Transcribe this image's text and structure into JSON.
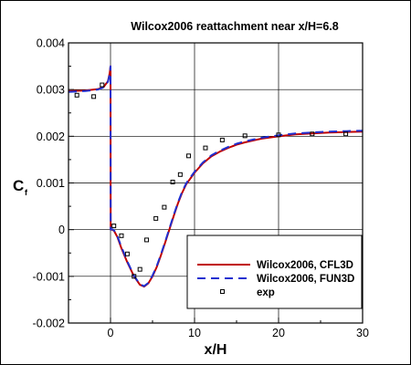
{
  "chart_data": {
    "type": "line",
    "title": "Wilcox2006 reattachment near x/H=6.8",
    "xlabel": "x/H",
    "ylabel_main": "C",
    "ylabel_sub": "f",
    "xlim": [
      -5,
      30
    ],
    "ylim": [
      -0.002,
      0.004
    ],
    "x_ticks": [
      0,
      10,
      20,
      30
    ],
    "x_tick_labels": [
      "0",
      "10",
      "20",
      "30"
    ],
    "y_ticks": [
      -0.002,
      -0.001,
      0,
      0.001,
      0.002,
      0.003,
      0.004
    ],
    "y_tick_labels": [
      "-0.002",
      "-0.001",
      "0",
      "0.001",
      "0.002",
      "0.003",
      "0.004"
    ],
    "grid": true,
    "legend_position": "bottom-right",
    "series": [
      {
        "name": "Wilcox2006, CFL3D",
        "color": "#c00000",
        "style": "solid",
        "x": [
          -5,
          -3,
          -1.5,
          -0.8,
          -0.3,
          -0.1,
          0,
          0.02,
          0.15,
          0.4,
          0.8,
          1.3,
          2,
          2.8,
          3.5,
          4,
          4.5,
          5,
          5.5,
          6,
          6.5,
          7,
          7.5,
          8,
          8.5,
          9,
          10,
          11,
          12,
          13,
          14,
          15,
          16,
          17,
          18,
          20,
          22,
          24,
          26,
          28,
          30
        ],
        "y": [
          0.00297,
          0.00298,
          0.00301,
          0.00306,
          0.00318,
          0.00335,
          0.0035,
          0.0,
          0.0,
          -2e-05,
          -0.00015,
          -0.0004,
          -0.0007,
          -0.001,
          -0.00118,
          -0.00122,
          -0.00115,
          -0.001,
          -0.0008,
          -0.00055,
          -0.00028,
          0.0,
          0.00028,
          0.00055,
          0.00078,
          0.00097,
          0.00122,
          0.00142,
          0.00157,
          0.00167,
          0.00175,
          0.00182,
          0.00187,
          0.00191,
          0.00195,
          0.002,
          0.00204,
          0.00206,
          0.00208,
          0.00209,
          0.0021
        ]
      },
      {
        "name": "Wilcox2006, FUN3D",
        "color": "#1f2fd0",
        "style": "dashed",
        "x": [
          -5,
          -3,
          -1.5,
          -0.8,
          -0.3,
          -0.1,
          0,
          0.02,
          0.15,
          0.4,
          0.8,
          1.3,
          2,
          2.8,
          3.5,
          4,
          4.5,
          5,
          5.5,
          6,
          6.5,
          7,
          7.5,
          8,
          8.5,
          9,
          10,
          11,
          12,
          13,
          14,
          15,
          16,
          17,
          18,
          20,
          22,
          24,
          26,
          28,
          30
        ],
        "y": [
          0.00295,
          0.00297,
          0.003,
          0.00305,
          0.00317,
          0.00333,
          0.0035,
          0.0,
          1e-05,
          -1e-05,
          -0.00013,
          -0.00037,
          -0.00068,
          -0.00099,
          -0.00117,
          -0.00121,
          -0.00114,
          -0.00098,
          -0.00078,
          -0.00053,
          -0.00026,
          2e-05,
          0.0003,
          0.00057,
          0.0008,
          0.00099,
          0.00124,
          0.00144,
          0.00159,
          0.00169,
          0.00177,
          0.00184,
          0.00189,
          0.00193,
          0.00197,
          0.00202,
          0.00206,
          0.00208,
          0.0021,
          0.00211,
          0.00212
        ]
      },
      {
        "name": "exp",
        "color": "#000000",
        "style": "markers",
        "x": [
          -4,
          -2,
          -1,
          0.4,
          1.3,
          2,
          2.8,
          3.5,
          4.3,
          5.4,
          6.4,
          7.4,
          8.3,
          9.3,
          11.3,
          13.3,
          16,
          20,
          24,
          28
        ],
        "y": [
          0.00288,
          0.00285,
          0.0031,
          8e-05,
          -0.00013,
          -0.00052,
          -0.001,
          -0.00085,
          -0.00022,
          0.00024,
          0.00048,
          0.00102,
          0.00118,
          0.00158,
          0.00175,
          0.00192,
          0.00201,
          0.00203,
          0.00205,
          0.00205
        ]
      }
    ]
  }
}
